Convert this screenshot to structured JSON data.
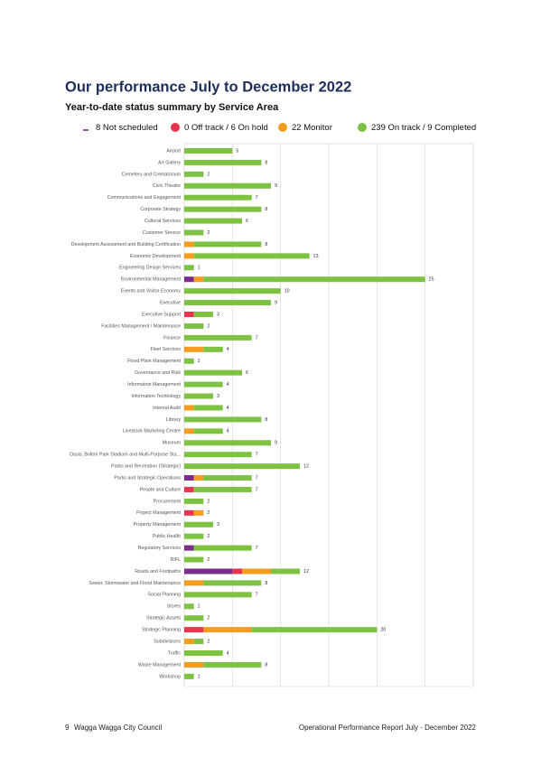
{
  "header": {
    "title": "Our performance July to December 2022",
    "subtitle": "Year-to-date status summary by Service Area"
  },
  "chart_data": {
    "type": "bar",
    "orientation": "horizontal",
    "stacked": true,
    "categories": [
      "Airport",
      "Art Gallery",
      "Cemetery and Crematorium",
      "Civic Theatre",
      "Communications and Engagement",
      "Corporate Strategy",
      "Cultural Services",
      "Customer Service",
      "Development Assessment and Building Certification",
      "Economic Development",
      "Engineering Design Services",
      "Environmental Management",
      "Events and Visitor Economy",
      "Executive",
      "Executive Support",
      "Facilities Management / Maintenance",
      "Finance",
      "Fleet Services",
      "Flood Plain Management",
      "Governance and Risk",
      "Information Management",
      "Information Technology",
      "Internal Audit",
      "Library",
      "Livestock Marketing Centre",
      "Museum",
      "Oasis, Bolton Park Stadium and Multi-Purpose Sta...",
      "Parks and Recreation (Strategic)",
      "Parks and Strategic Operations",
      "People and Culture",
      "Procurement",
      "Project Management",
      "Property Management",
      "Public Health",
      "Regulatory Services",
      "RIFL",
      "Roads and Footpaths",
      "Sewer, Stormwater and Flood Maintenance",
      "Social Planning",
      "Stores",
      "Strategic Assets",
      "Strategic Planning",
      "Subdivisions",
      "Traffic",
      "Waste Management",
      "Workshop"
    ],
    "series": [
      {
        "name": "8 Not scheduled",
        "color": "#7b2d8e",
        "marker": "line",
        "values": [
          0,
          0,
          0,
          0,
          0,
          0,
          0,
          0,
          0,
          0,
          0,
          1,
          0,
          0,
          0,
          0,
          0,
          0,
          0,
          0,
          0,
          0,
          0,
          0,
          0,
          0,
          0,
          0,
          1,
          0,
          0,
          0,
          0,
          0,
          1,
          0,
          5,
          0,
          0,
          0,
          0,
          0,
          0,
          0,
          0,
          0
        ]
      },
      {
        "name": "0 Off track / 6 On hold",
        "color": "#e8344e",
        "marker": "circle",
        "values": [
          0,
          0,
          0,
          0,
          0,
          0,
          0,
          0,
          0,
          0,
          0,
          0,
          0,
          0,
          1,
          0,
          0,
          0,
          0,
          0,
          0,
          0,
          0,
          0,
          0,
          0,
          0,
          0,
          0,
          1,
          0,
          1,
          0,
          0,
          0,
          0,
          1,
          0,
          0,
          0,
          0,
          2,
          0,
          0,
          0,
          0
        ]
      },
      {
        "name": "22 Monitor",
        "color": "#f39c1f",
        "marker": "circle",
        "values": [
          0,
          0,
          0,
          0,
          0,
          0,
          0,
          0,
          1,
          1,
          0,
          1,
          0,
          0,
          0,
          0,
          0,
          2,
          0,
          0,
          0,
          0,
          1,
          0,
          1,
          0,
          0,
          0,
          1,
          0,
          0,
          1,
          0,
          0,
          0,
          0,
          3,
          2,
          0,
          0,
          0,
          5,
          1,
          0,
          2,
          0
        ]
      },
      {
        "name": "239 On track / 9 Completed",
        "color": "#7dc243",
        "marker": "circle",
        "values": [
          5,
          8,
          2,
          9,
          7,
          8,
          6,
          2,
          7,
          12,
          1,
          23,
          10,
          9,
          2,
          2,
          7,
          2,
          1,
          6,
          4,
          3,
          3,
          8,
          3,
          9,
          7,
          12,
          5,
          6,
          2,
          0,
          3,
          2,
          6,
          2,
          3,
          6,
          7,
          1,
          2,
          13,
          1,
          4,
          6,
          1
        ]
      }
    ],
    "totals": [
      5,
      8,
      2,
      9,
      7,
      8,
      6,
      2,
      8,
      13,
      1,
      25,
      10,
      9,
      3,
      2,
      7,
      4,
      1,
      6,
      4,
      3,
      4,
      8,
      4,
      9,
      7,
      12,
      7,
      7,
      2,
      2,
      3,
      2,
      7,
      2,
      12,
      8,
      7,
      1,
      2,
      20,
      2,
      4,
      8,
      1
    ],
    "xlim": [
      0,
      30
    ],
    "xticks": [
      0,
      5,
      10,
      15,
      20,
      25,
      30
    ],
    "grid": true
  },
  "footer": {
    "page_number": "9",
    "left": "Wagga Wagga City Council",
    "right": "Operational Performance Report July - December 2022"
  }
}
